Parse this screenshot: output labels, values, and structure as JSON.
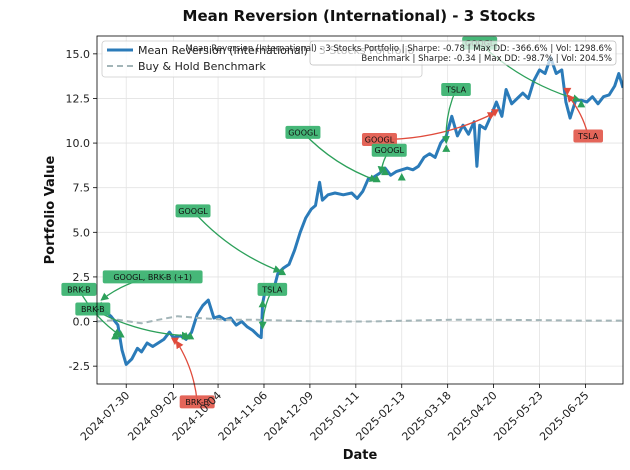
{
  "chart_data": {
    "type": "line",
    "title": "Mean Reversion (International) - 3 Stocks",
    "xlabel": "Date",
    "ylabel": "Portfolio Value",
    "x_range": [
      "2024-07-09",
      "2025-07-22"
    ],
    "ylim": [
      -3.5,
      16
    ],
    "x_ticks": [
      "2024-07-30",
      "2024-09-02",
      "2024-10-04",
      "2024-11-06",
      "2024-12-09",
      "2025-01-11",
      "2025-02-13",
      "2025-03-18",
      "2025-04-20",
      "2025-05-23",
      "2025-06-25"
    ],
    "y_ticks": [
      -2.5,
      0.0,
      2.5,
      5.0,
      7.5,
      10.0,
      12.5,
      15.0
    ],
    "grid": true,
    "legend_position": "top-left",
    "colors": {
      "strategy": "#2b7bb9",
      "benchmark": "#a3b5b8",
      "buy": "#2ca05a",
      "sell": "#e04b3c",
      "buy_label_bg": "#3cb371",
      "sell_label_bg": "#e35d50"
    },
    "series": [
      {
        "name": "Mean Reversion (International) - 3 Stocks Portfolio",
        "style": "solid",
        "points": [
          [
            "2024-07-09",
            0.8
          ],
          [
            "2024-07-14",
            0.6
          ],
          [
            "2024-07-19",
            0.3
          ],
          [
            "2024-07-24",
            -0.2
          ],
          [
            "2024-07-27",
            -1.6
          ],
          [
            "2024-07-30",
            -2.4
          ],
          [
            "2024-08-03",
            -2.1
          ],
          [
            "2024-08-07",
            -1.5
          ],
          [
            "2024-08-10",
            -1.7
          ],
          [
            "2024-08-14",
            -1.2
          ],
          [
            "2024-08-18",
            -1.4
          ],
          [
            "2024-08-22",
            -1.2
          ],
          [
            "2024-08-26",
            -1.0
          ],
          [
            "2024-08-30",
            -0.6
          ],
          [
            "2024-09-02",
            -0.9
          ],
          [
            "2024-09-07",
            -0.8
          ],
          [
            "2024-09-11",
            -1.0
          ],
          [
            "2024-09-15",
            -0.6
          ],
          [
            "2024-09-19",
            0.4
          ],
          [
            "2024-09-23",
            0.9
          ],
          [
            "2024-09-27",
            1.2
          ],
          [
            "2024-10-01",
            0.2
          ],
          [
            "2024-10-05",
            0.3
          ],
          [
            "2024-10-09",
            0.1
          ],
          [
            "2024-10-13",
            0.2
          ],
          [
            "2024-10-17",
            -0.2
          ],
          [
            "2024-10-21",
            0.0
          ],
          [
            "2024-10-25",
            -0.3
          ],
          [
            "2024-10-29",
            -0.5
          ],
          [
            "2024-11-02",
            -0.8
          ],
          [
            "2024-11-04",
            -0.9
          ],
          [
            "2024-11-05",
            1.0
          ],
          [
            "2024-11-07",
            1.8
          ],
          [
            "2024-11-11",
            2.0
          ],
          [
            "2024-11-13",
            1.8
          ],
          [
            "2024-11-16",
            2.7
          ],
          [
            "2024-11-20",
            3.0
          ],
          [
            "2024-11-24",
            3.2
          ],
          [
            "2024-11-28",
            4.0
          ],
          [
            "2024-12-02",
            5.0
          ],
          [
            "2024-12-06",
            5.8
          ],
          [
            "2024-12-10",
            6.3
          ],
          [
            "2024-12-13",
            6.5
          ],
          [
            "2024-12-16",
            7.8
          ],
          [
            "2024-12-18",
            6.8
          ],
          [
            "2024-12-22",
            7.1
          ],
          [
            "2024-12-27",
            7.2
          ],
          [
            "2025-01-02",
            7.1
          ],
          [
            "2025-01-08",
            7.2
          ],
          [
            "2025-01-12",
            6.9
          ],
          [
            "2025-01-16",
            7.3
          ],
          [
            "2025-01-20",
            8.0
          ],
          [
            "2025-01-24",
            8.1
          ],
          [
            "2025-01-28",
            8.3
          ],
          [
            "2025-02-01",
            8.6
          ],
          [
            "2025-02-05",
            8.2
          ],
          [
            "2025-02-09",
            8.4
          ],
          [
            "2025-02-13",
            8.5
          ],
          [
            "2025-02-17",
            8.6
          ],
          [
            "2025-02-21",
            8.5
          ],
          [
            "2025-02-25",
            8.7
          ],
          [
            "2025-03-01",
            9.2
          ],
          [
            "2025-03-05",
            9.4
          ],
          [
            "2025-03-09",
            9.2
          ],
          [
            "2025-03-13",
            10.0
          ],
          [
            "2025-03-17",
            10.4
          ],
          [
            "2025-03-21",
            11.5
          ],
          [
            "2025-03-25",
            10.4
          ],
          [
            "2025-03-29",
            11.0
          ],
          [
            "2025-04-02",
            10.5
          ],
          [
            "2025-04-06",
            11.2
          ],
          [
            "2025-04-08",
            8.7
          ],
          [
            "2025-04-10",
            11.0
          ],
          [
            "2025-04-14",
            10.8
          ],
          [
            "2025-04-18",
            11.5
          ],
          [
            "2025-04-22",
            12.3
          ],
          [
            "2025-04-26",
            11.5
          ],
          [
            "2025-04-29",
            13.0
          ],
          [
            "2025-05-03",
            12.2
          ],
          [
            "2025-05-07",
            12.5
          ],
          [
            "2025-05-11",
            12.8
          ],
          [
            "2025-05-15",
            12.5
          ],
          [
            "2025-05-19",
            13.5
          ],
          [
            "2025-05-23",
            14.1
          ],
          [
            "2025-05-27",
            13.9
          ],
          [
            "2025-05-31",
            14.8
          ],
          [
            "2025-06-04",
            13.9
          ],
          [
            "2025-06-08",
            14.1
          ],
          [
            "2025-06-11",
            12.3
          ],
          [
            "2025-06-14",
            11.4
          ],
          [
            "2025-06-18",
            12.4
          ],
          [
            "2025-06-22",
            12.4
          ],
          [
            "2025-06-26",
            12.3
          ],
          [
            "2025-06-30",
            12.6
          ],
          [
            "2025-07-04",
            12.2
          ],
          [
            "2025-07-08",
            12.6
          ],
          [
            "2025-07-12",
            12.7
          ],
          [
            "2025-07-16",
            13.2
          ],
          [
            "2025-07-19",
            13.9
          ],
          [
            "2025-07-22",
            13.1
          ]
        ]
      },
      {
        "name": "Buy & Hold Benchmark",
        "style": "dashed",
        "points": [
          [
            "2024-07-09",
            0.0
          ],
          [
            "2024-07-24",
            0.1
          ],
          [
            "2024-08-10",
            -0.1
          ],
          [
            "2024-08-22",
            0.1
          ],
          [
            "2024-09-05",
            0.3
          ],
          [
            "2024-09-20",
            0.2
          ],
          [
            "2024-10-10",
            0.1
          ],
          [
            "2024-11-01",
            0.1
          ],
          [
            "2024-11-20",
            0.05
          ],
          [
            "2024-12-20",
            0.0
          ],
          [
            "2025-01-20",
            0.0
          ],
          [
            "2025-02-20",
            0.05
          ],
          [
            "2025-03-20",
            0.1
          ],
          [
            "2025-04-20",
            0.1
          ],
          [
            "2025-05-20",
            0.08
          ],
          [
            "2025-06-20",
            0.05
          ],
          [
            "2025-07-22",
            0.05
          ]
        ]
      }
    ],
    "stats_box": [
      "Mean Reversion (International) - 3 Stocks Portfolio | Sharpe: -0.78 | Max DD: -366.6% | Vol: 1298.6%",
      "Benchmark | Sharpe: -0.34 | Max DD: -98.7% | Vol: 204.5%"
    ],
    "trade_markers": [
      {
        "kind": "buy",
        "date": "2024-07-12",
        "value": 0.9
      },
      {
        "kind": "buy",
        "date": "2024-07-22",
        "value": -0.8
      },
      {
        "kind": "buy",
        "date": "2024-07-26",
        "value": -0.7
      },
      {
        "kind": "sell",
        "date": "2024-09-03",
        "value": -1.1
      },
      {
        "kind": "buy",
        "date": "2024-09-11",
        "value": -0.8
      },
      {
        "kind": "buy",
        "date": "2024-09-14",
        "value": -0.8
      },
      {
        "kind": "buy",
        "date": "2024-11-05",
        "value": 1.0
      },
      {
        "kind": "buy",
        "date": "2024-11-19",
        "value": 2.8
      },
      {
        "kind": "buy",
        "date": "2025-01-26",
        "value": 8.0
      },
      {
        "kind": "buy",
        "date": "2025-02-01",
        "value": 8.4
      },
      {
        "kind": "buy",
        "date": "2025-02-13",
        "value": 8.1
      },
      {
        "kind": "buy",
        "date": "2025-03-17",
        "value": 9.7
      },
      {
        "kind": "sell",
        "date": "2025-04-21",
        "value": 11.7
      },
      {
        "kind": "sell",
        "date": "2025-06-12",
        "value": 12.9
      },
      {
        "kind": "buy",
        "date": "2025-06-22",
        "value": 12.2
      }
    ],
    "annotations": [
      {
        "text": "BRK-B",
        "kind": "buy",
        "label_at": [
          "2024-06-26",
          1.8
        ],
        "arrow_to": [
          "2024-07-26",
          -0.8
        ]
      },
      {
        "text": "BRK-B",
        "kind": "buy",
        "label_at": [
          "2024-07-06",
          0.7
        ],
        "arrow_to": [
          "2024-09-13",
          -0.8
        ]
      },
      {
        "text": "GOOGL, BRK-B (+1)",
        "kind": "buy",
        "label_at": [
          "2024-08-18",
          2.5
        ],
        "arrow_to": [
          "2024-07-12",
          1.2
        ]
      },
      {
        "text": "BRK-B",
        "kind": "sell",
        "label_at": [
          "2024-09-19",
          -4.5
        ],
        "arrow_to": [
          "2024-09-04",
          -1.1
        ]
      },
      {
        "text": "GOOGL",
        "kind": "buy",
        "label_at": [
          "2024-09-16",
          6.2
        ],
        "arrow_to": [
          "2024-11-18",
          2.8
        ]
      },
      {
        "text": "TSLA",
        "kind": "buy",
        "label_at": [
          "2024-11-12",
          1.8
        ],
        "arrow_to": [
          "2024-11-05",
          -0.4
        ]
      },
      {
        "text": "GOOGL",
        "kind": "buy",
        "label_at": [
          "2024-12-04",
          10.6
        ],
        "arrow_to": [
          "2025-01-26",
          7.9
        ]
      },
      {
        "text": "GOOGL",
        "kind": "sell",
        "label_at": [
          "2025-01-28",
          10.2
        ],
        "arrow_to": [
          "2025-04-21",
          11.7
        ]
      },
      {
        "text": "GOOGL",
        "kind": "buy",
        "label_at": [
          "2025-02-04",
          9.6
        ],
        "arrow_to": [
          "2025-01-29",
          8.3
        ]
      },
      {
        "text": "TSLA",
        "kind": "buy",
        "label_at": [
          "2025-03-24",
          13.0
        ],
        "arrow_to": [
          "2025-03-17",
          10.0
        ]
      },
      {
        "text": "GOOGL",
        "kind": "buy",
        "label_at": [
          "2025-04-10",
          15.6
        ],
        "arrow_to": [
          "2025-06-21",
          12.4
        ]
      },
      {
        "text": "TSLA",
        "kind": "sell",
        "label_at": [
          "2025-06-27",
          10.4
        ],
        "arrow_to": [
          "2025-06-12",
          12.7
        ]
      }
    ]
  }
}
